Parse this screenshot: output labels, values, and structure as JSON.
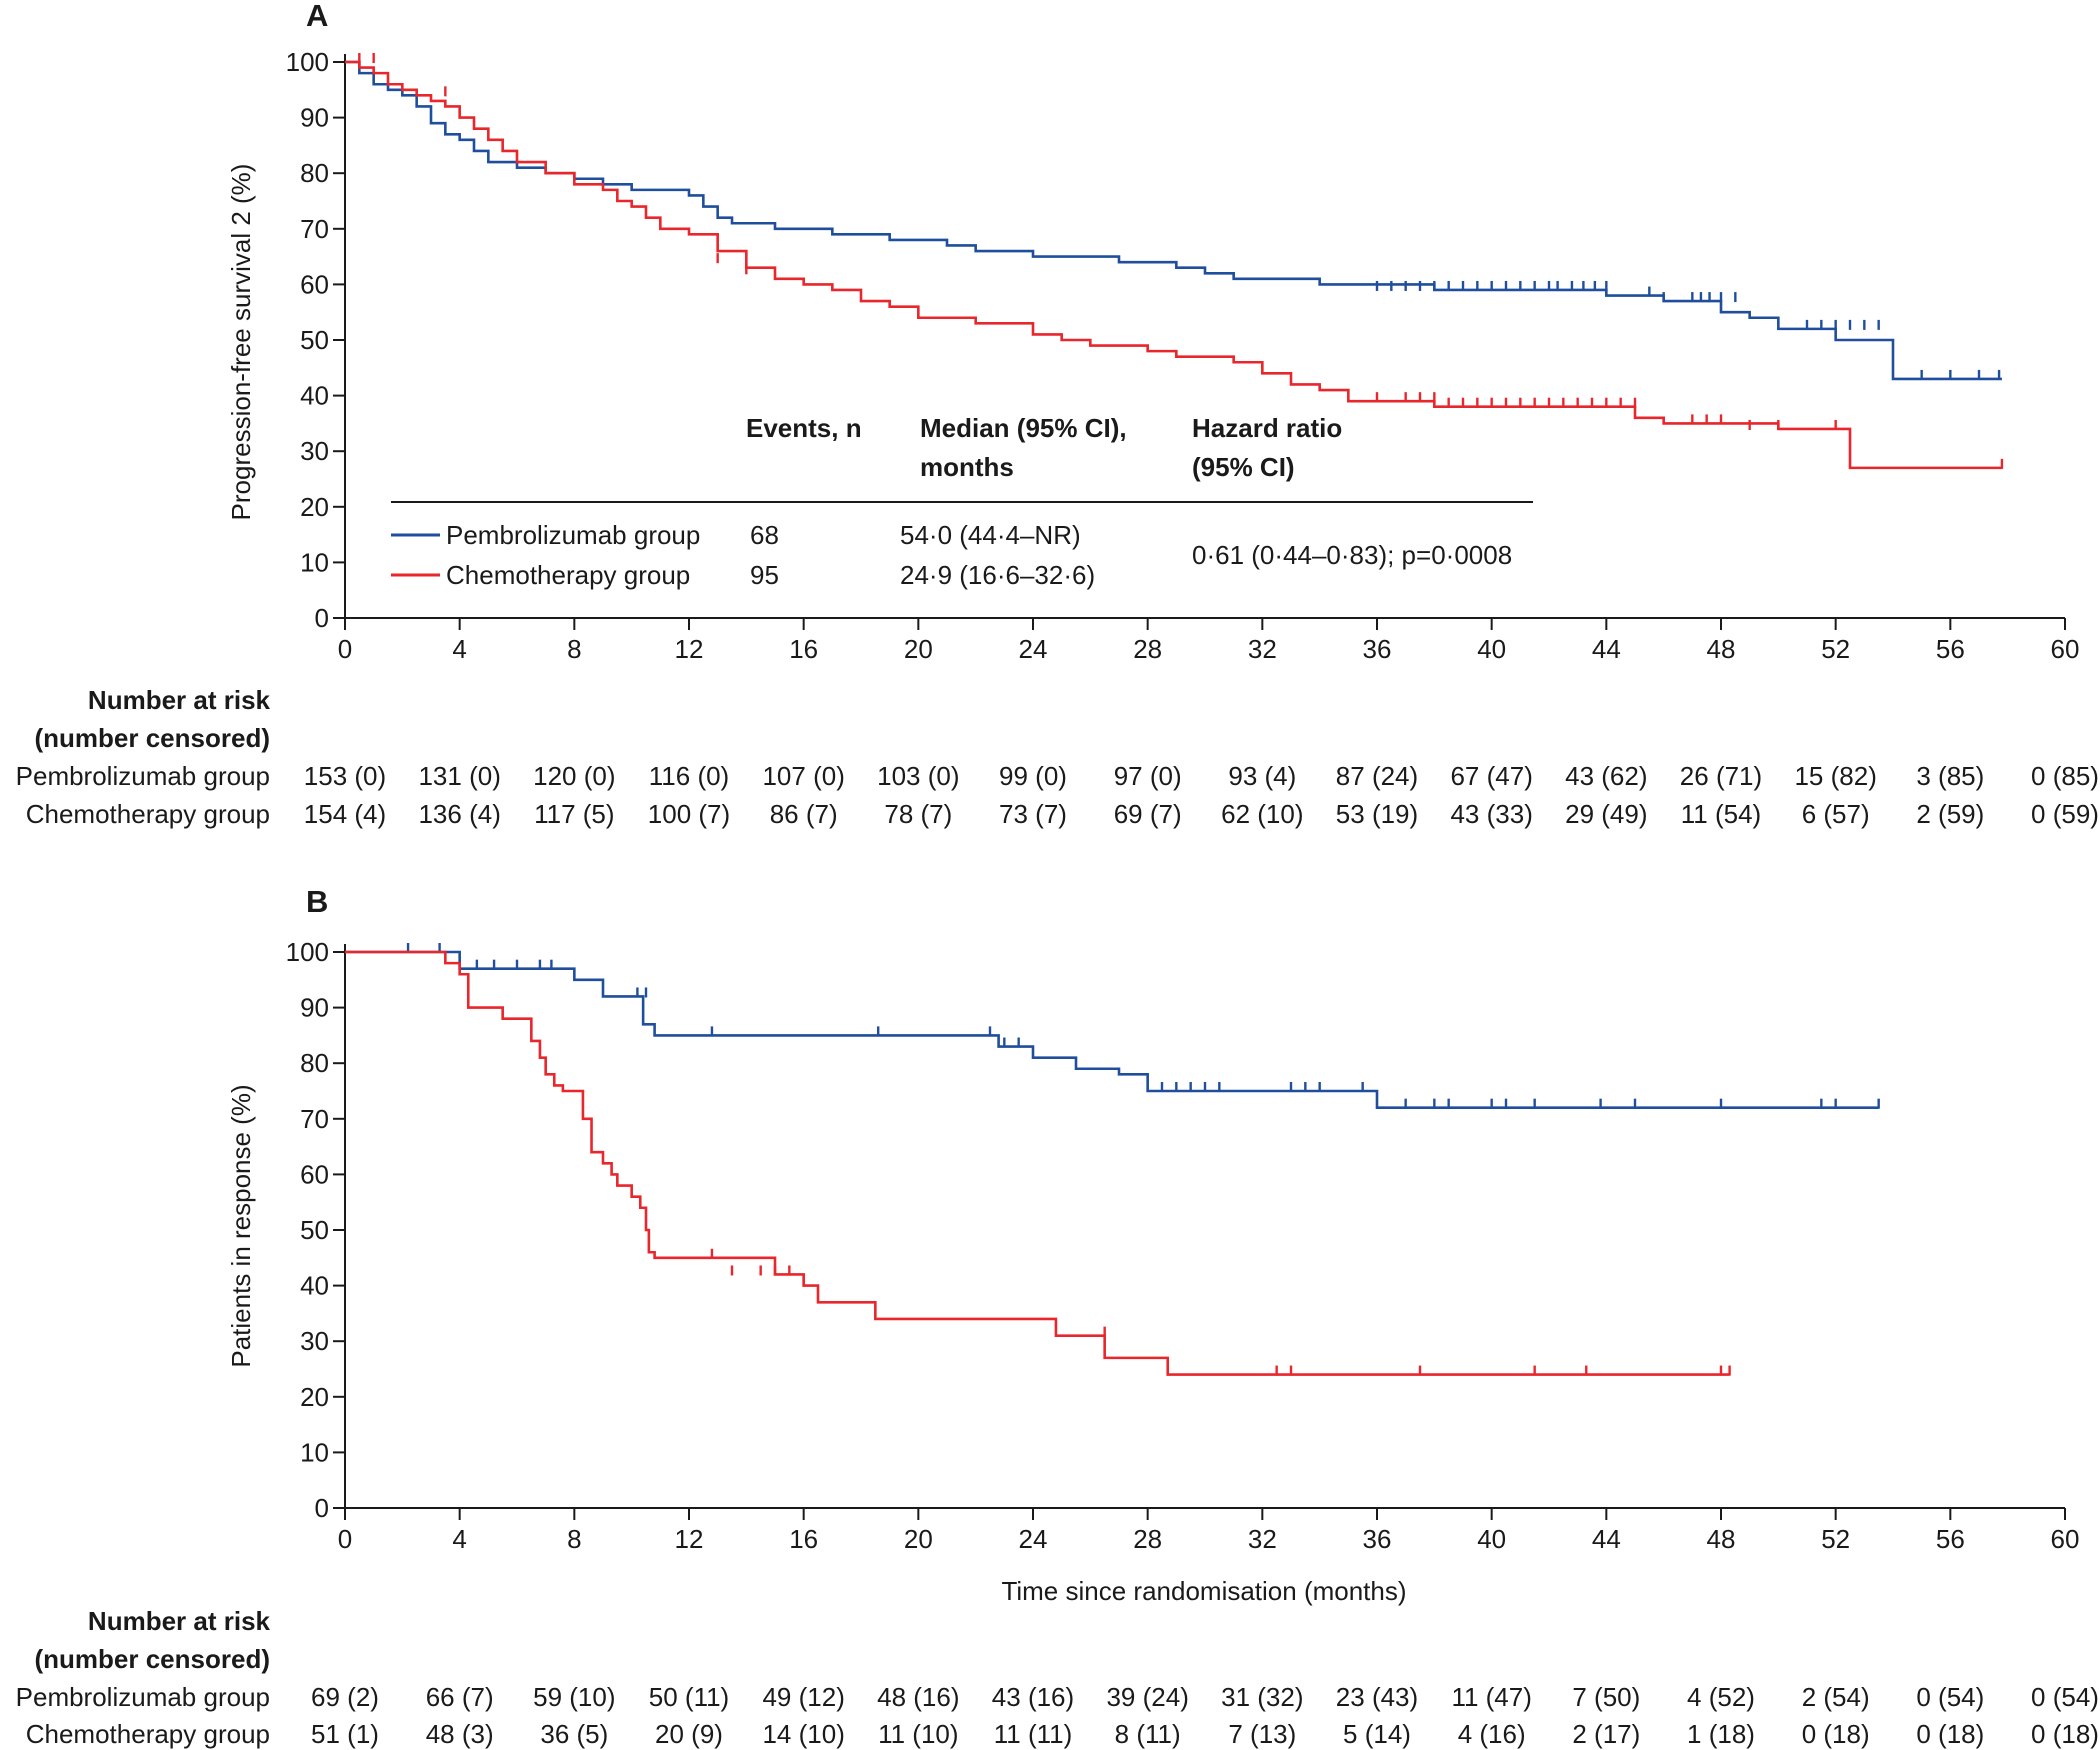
{
  "figure": {
    "colors": {
      "pembrolizumab": "#1f4e9c",
      "chemotherapy": "#e8262b",
      "axis": "#1a1a1a"
    }
  },
  "chart_data": [
    {
      "panel": "A",
      "type": "line",
      "step": true,
      "title": "",
      "xlabel": "",
      "ylabel": "Progression-free survival 2 (%)",
      "xlim": [
        0,
        60
      ],
      "ylim": [
        0,
        100
      ],
      "xticks": [
        "0",
        "4",
        "8",
        "12",
        "16",
        "20",
        "24",
        "28",
        "32",
        "36",
        "40",
        "44",
        "48",
        "52",
        "56",
        "60"
      ],
      "yticks": [
        "0",
        "10",
        "20",
        "30",
        "40",
        "50",
        "60",
        "70",
        "80",
        "90",
        "100"
      ],
      "series": [
        {
          "name": "Pembrolizumab group",
          "color": "#1f4e9c",
          "x": [
            0,
            0.5,
            1,
            1.5,
            2,
            2.5,
            3,
            3.5,
            4,
            4.5,
            5,
            6,
            7,
            8,
            9,
            10,
            11,
            12,
            12.5,
            13,
            13.5,
            14,
            15,
            16,
            17,
            18,
            19,
            20,
            21,
            22,
            23,
            24,
            26,
            27,
            28,
            29,
            30,
            31,
            32,
            33,
            34,
            35,
            38,
            40,
            42,
            43,
            44,
            45,
            46,
            47,
            48,
            49,
            50,
            52,
            54,
            56,
            57.8
          ],
          "y": [
            100,
            98,
            96,
            95,
            94,
            92,
            89,
            87,
            86,
            84,
            82,
            81,
            80,
            79,
            78,
            77,
            77,
            76,
            74,
            72,
            71,
            71,
            70,
            70,
            69,
            69,
            68,
            68,
            67,
            66,
            66,
            65,
            65,
            64,
            64,
            63,
            62,
            61,
            61,
            61,
            60,
            60,
            59,
            59,
            59,
            59,
            58,
            58,
            57,
            57,
            55,
            54,
            52,
            50,
            43,
            43,
            43
          ],
          "censor_x": [
            36,
            36.5,
            37,
            37.5,
            38,
            38.5,
            39,
            39.5,
            40,
            40.5,
            41,
            41.5,
            42,
            42.3,
            42.8,
            43.2,
            43.6,
            44,
            45.5,
            46,
            47,
            47.3,
            47.6,
            48,
            48.5,
            51,
            51.5,
            52,
            52.5,
            53,
            53.5,
            55,
            56,
            57,
            57.7
          ],
          "censor_y": [
            59,
            59,
            59,
            59,
            59,
            59,
            59,
            59,
            59,
            59,
            59,
            59,
            59,
            59,
            59,
            59,
            59,
            59,
            58,
            57,
            57,
            57,
            57,
            57,
            57,
            52,
            52,
            52,
            52,
            52,
            52,
            43,
            43,
            43,
            43
          ]
        },
        {
          "name": "Chemotherapy group",
          "color": "#e8262b",
          "x": [
            0,
            0.5,
            1,
            1.5,
            2,
            2.5,
            3,
            3.5,
            4,
            4.5,
            5,
            5.5,
            6,
            7,
            8,
            9,
            9.5,
            10,
            10.5,
            11,
            12,
            13,
            14,
            15,
            16,
            17,
            18,
            19,
            20,
            21,
            22,
            23,
            24,
            25,
            26,
            27,
            28,
            29,
            30,
            31,
            32,
            33,
            34,
            35,
            36,
            38,
            40,
            42,
            44,
            45,
            46,
            48,
            50,
            52,
            52.5,
            54,
            56,
            57.8
          ],
          "y": [
            100,
            99,
            98,
            96,
            95,
            94,
            93,
            92,
            90,
            88,
            86,
            84,
            82,
            80,
            78,
            77,
            75,
            74,
            72,
            70,
            69,
            66,
            63,
            61,
            60,
            59,
            57,
            56,
            54,
            54,
            53,
            53,
            51,
            50,
            49,
            49,
            48,
            47,
            47,
            46,
            44,
            42,
            41,
            39,
            39,
            38,
            38,
            38,
            38,
            36,
            35,
            35,
            34,
            34,
            27,
            27,
            27,
            27
          ],
          "censor_x": [
            0.5,
            1,
            3.5,
            13,
            14,
            36,
            37,
            37.5,
            38,
            38.5,
            39,
            39.5,
            40,
            40.5,
            41,
            41.5,
            42,
            42.5,
            43,
            43.5,
            44,
            44.5,
            45,
            47,
            47.5,
            48,
            49,
            50,
            52,
            57.8
          ],
          "censor_y": [
            100,
            100,
            94,
            64,
            62,
            39,
            39,
            39,
            39,
            38,
            38,
            38,
            38,
            38,
            38,
            38,
            38,
            38,
            38,
            38,
            38,
            38,
            38,
            35,
            35,
            35,
            34,
            34,
            34,
            27
          ]
        }
      ]
    },
    {
      "panel": "B",
      "type": "line",
      "step": true,
      "title": "",
      "xlabel": "Time since randomisation (months)",
      "ylabel": "Patients in response (%)",
      "xlim": [
        0,
        60
      ],
      "ylim": [
        0,
        100
      ],
      "xticks": [
        "0",
        "4",
        "8",
        "12",
        "16",
        "20",
        "24",
        "28",
        "32",
        "36",
        "40",
        "44",
        "48",
        "52",
        "56",
        "60"
      ],
      "yticks": [
        "0",
        "10",
        "20",
        "30",
        "40",
        "50",
        "60",
        "70",
        "80",
        "90",
        "100"
      ],
      "series": [
        {
          "name": "Pembrolizumab group",
          "color": "#1f4e9c",
          "x": [
            0,
            3,
            4,
            7.5,
            8,
            9,
            10,
            10.4,
            10.8,
            22,
            22.8,
            24,
            25.5,
            27,
            28,
            36,
            53.5
          ],
          "y": [
            100,
            100,
            97,
            97,
            95,
            92,
            92,
            87,
            85,
            85,
            83,
            81,
            79,
            78,
            75,
            72,
            72
          ],
          "censor_x": [
            2.2,
            3.3,
            4.6,
            5.2,
            6,
            6.8,
            7.2,
            10.2,
            10.5,
            12.8,
            18.6,
            22.5,
            23,
            23.5,
            28.5,
            29,
            29.5,
            30,
            30.5,
            33,
            33.5,
            34,
            35.5,
            37,
            38,
            38.5,
            40,
            40.5,
            41.5,
            43.8,
            45,
            48,
            51.5,
            52,
            53.5
          ],
          "censor_y": [
            100,
            100,
            97,
            97,
            97,
            97,
            97,
            92,
            92,
            85,
            85,
            85,
            83,
            83,
            75,
            75,
            75,
            75,
            75,
            75,
            75,
            75,
            75,
            72,
            72,
            72,
            72,
            72,
            72,
            72,
            72,
            72,
            72,
            72,
            72
          ]
        },
        {
          "name": "Chemotherapy group",
          "color": "#e8262b",
          "x": [
            0,
            2.8,
            3.5,
            4,
            4.3,
            5,
            5.5,
            6,
            6.5,
            6.8,
            7,
            7.3,
            7.6,
            8,
            8.3,
            8.6,
            9,
            9.3,
            9.5,
            10,
            10.3,
            10.5,
            10.6,
            10.8,
            12,
            15,
            16,
            16.5,
            18.5,
            24.8,
            26.5,
            28.7,
            48.3
          ],
          "y": [
            100,
            100,
            98,
            96,
            90,
            90,
            88,
            88,
            84,
            81,
            78,
            76,
            75,
            75,
            70,
            64,
            62,
            60,
            58,
            56,
            54,
            50,
            46,
            45,
            45,
            42,
            40,
            37,
            34,
            31,
            27,
            24,
            24
          ],
          "censor_x": [
            12.8,
            13.5,
            14.5,
            15,
            15.5,
            16,
            26.5,
            32.5,
            33,
            37.5,
            41.5,
            43.3,
            48,
            48.3
          ],
          "censor_y": [
            45,
            42,
            42,
            42,
            42,
            40,
            31,
            24,
            24,
            24,
            24,
            24,
            24,
            24
          ]
        }
      ]
    }
  ],
  "panelA": {
    "label": "A",
    "legend": {
      "header_events": "Events, n",
      "header_median_line1": "Median (95% CI),",
      "header_median_line2": "months",
      "header_hr_line1": "Hazard ratio",
      "header_hr_line2": "(95% CI)",
      "rows": [
        {
          "name": "Pembrolizumab group",
          "events": "68",
          "median": "54·0 (44·4–NR)"
        },
        {
          "name": "Chemotherapy group",
          "events": "95",
          "median": "24·9 (16·6–32·6)"
        }
      ],
      "hazard_ratio": "0·61 (0·44–0·83); p=0·0008"
    },
    "risk": {
      "header_line1": "Number at risk",
      "header_line2": "(number censored)",
      "rows": [
        {
          "label": "Pembrolizumab group",
          "values": [
            "153 (0)",
            "131 (0)",
            "120 (0)",
            "116 (0)",
            "107 (0)",
            "103 (0)",
            "99 (0)",
            "97 (0)",
            "93 (4)",
            "87 (24)",
            "67 (47)",
            "43 (62)",
            "26 (71)",
            "15 (82)",
            "3 (85)",
            "0 (85)"
          ]
        },
        {
          "label": "Chemotherapy group",
          "values": [
            "154 (4)",
            "136 (4)",
            "117 (5)",
            "100 (7)",
            "86 (7)",
            "78 (7)",
            "73 (7)",
            "69 (7)",
            "62 (10)",
            "53 (19)",
            "43 (33)",
            "29 (49)",
            "11 (54)",
            "6 (57)",
            "2 (59)",
            "0 (59)"
          ]
        }
      ]
    }
  },
  "panelB": {
    "label": "B",
    "risk": {
      "header_line1": "Number at risk",
      "header_line2": "(number censored)",
      "rows": [
        {
          "label": "Pembrolizumab group",
          "values": [
            "69 (2)",
            "66 (7)",
            "59 (10)",
            "50 (11)",
            "49 (12)",
            "48 (16)",
            "43 (16)",
            "39 (24)",
            "31 (32)",
            "23 (43)",
            "11 (47)",
            "7 (50)",
            "4 (52)",
            "2 (54)",
            "0 (54)",
            "0 (54)"
          ]
        },
        {
          "label": "Chemotherapy group",
          "values": [
            "51 (1)",
            "48 (3)",
            "36 (5)",
            "20 (9)",
            "14 (10)",
            "11 (10)",
            "11 (11)",
            "8 (11)",
            "7 (13)",
            "5 (14)",
            "4 (16)",
            "2 (17)",
            "1 (18)",
            "0 (18)",
            "0 (18)",
            "0 (18)"
          ]
        }
      ]
    }
  }
}
